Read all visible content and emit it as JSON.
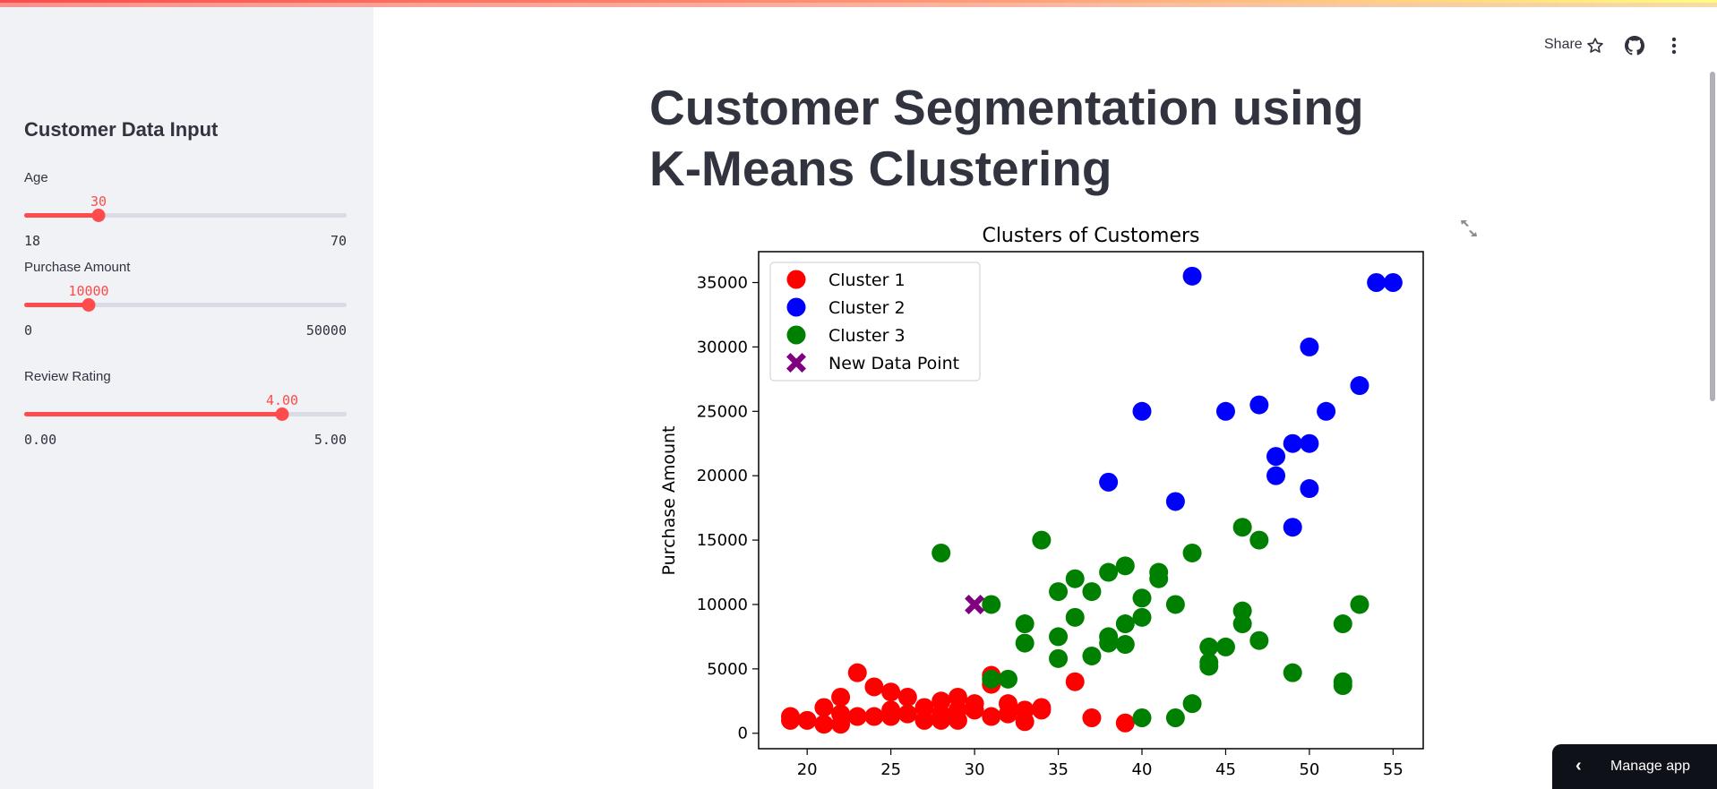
{
  "header": {
    "share_label": "Share",
    "icons": [
      "star-icon",
      "github-icon",
      "more-vertical-icon"
    ]
  },
  "sidebar": {
    "title": "Customer Data Input",
    "sliders": [
      {
        "label": "Age",
        "value": 30,
        "value_text": "30",
        "min": 18,
        "max": 70,
        "min_text": "18",
        "max_text": "70"
      },
      {
        "label": "Purchase Amount",
        "value": 10000,
        "value_text": "10000",
        "min": 0,
        "max": 50000,
        "min_text": "0",
        "max_text": "50000"
      },
      {
        "label": "Review Rating",
        "value": 4.0,
        "value_text": "4.00",
        "min": 0,
        "max": 5,
        "min_text": "0.00",
        "max_text": "5.00"
      }
    ]
  },
  "main": {
    "title": "Customer Segmentation using K-Means Clustering"
  },
  "manage_app": {
    "label": "Manage app"
  },
  "colors": {
    "accent": "#ff4b4b",
    "cluster1": "#ff0000",
    "cluster2": "#0000ff",
    "cluster3": "#008000",
    "new_point": "#800080"
  },
  "chart_data": {
    "type": "scatter",
    "title": "Clusters of Customers",
    "xlabel": "",
    "ylabel": "Purchase Amount",
    "xlim": [
      17.1,
      56.8
    ],
    "ylim": [
      -1200,
      37400
    ],
    "xticks": [
      20,
      25,
      30,
      35,
      40,
      45,
      50,
      55
    ],
    "yticks": [
      0,
      5000,
      10000,
      15000,
      20000,
      25000,
      30000,
      35000
    ],
    "grid": false,
    "legend_position": "top-left",
    "series": [
      {
        "name": "Cluster 1",
        "color": "#ff0000",
        "marker": "circle",
        "points": [
          [
            19,
            1300
          ],
          [
            19,
            1000
          ],
          [
            20,
            1000
          ],
          [
            21,
            2000
          ],
          [
            21,
            700
          ],
          [
            22,
            2800
          ],
          [
            22,
            1500
          ],
          [
            22,
            700
          ],
          [
            23,
            4700
          ],
          [
            23,
            1300
          ],
          [
            24,
            3600
          ],
          [
            24,
            1300
          ],
          [
            25,
            3200
          ],
          [
            25,
            1800
          ],
          [
            25,
            1300
          ],
          [
            26,
            2800
          ],
          [
            26,
            1500
          ],
          [
            27,
            2000
          ],
          [
            27,
            1000
          ],
          [
            28,
            2500
          ],
          [
            28,
            1500
          ],
          [
            28,
            1000
          ],
          [
            29,
            2800
          ],
          [
            29,
            1800
          ],
          [
            29,
            1000
          ],
          [
            30,
            2300
          ],
          [
            30,
            1800
          ],
          [
            31,
            4500
          ],
          [
            31,
            3800
          ],
          [
            31,
            1300
          ],
          [
            32,
            2300
          ],
          [
            32,
            1500
          ],
          [
            33,
            1800
          ],
          [
            33,
            900
          ],
          [
            34,
            2000
          ],
          [
            34,
            1800
          ],
          [
            36,
            4000
          ],
          [
            37,
            1200
          ],
          [
            39,
            800
          ]
        ]
      },
      {
        "name": "Cluster 2",
        "color": "#0000ff",
        "marker": "circle",
        "points": [
          [
            43,
            35500
          ],
          [
            54,
            35000
          ],
          [
            55,
            35000
          ],
          [
            50,
            30000
          ],
          [
            53,
            27000
          ],
          [
            40,
            25000
          ],
          [
            45,
            25000
          ],
          [
            47,
            25500
          ],
          [
            51,
            25000
          ],
          [
            49,
            22500
          ],
          [
            50,
            22500
          ],
          [
            48,
            21500
          ],
          [
            48,
            20000
          ],
          [
            38,
            19500
          ],
          [
            50,
            19000
          ],
          [
            42,
            18000
          ],
          [
            49,
            16000
          ]
        ]
      },
      {
        "name": "Cluster 3",
        "color": "#008000",
        "marker": "circle",
        "points": [
          [
            28,
            14000
          ],
          [
            34,
            15000
          ],
          [
            46,
            16000
          ],
          [
            47,
            15000
          ],
          [
            43,
            14000
          ],
          [
            38,
            12500
          ],
          [
            39,
            13000
          ],
          [
            36,
            12000
          ],
          [
            41,
            12500
          ],
          [
            41,
            12000
          ],
          [
            35,
            11000
          ],
          [
            37,
            11000
          ],
          [
            31,
            10000
          ],
          [
            40,
            10500
          ],
          [
            42,
            10000
          ],
          [
            53,
            10000
          ],
          [
            36,
            9000
          ],
          [
            40,
            9000
          ],
          [
            46,
            9500
          ],
          [
            46,
            8500
          ],
          [
            33,
            8500
          ],
          [
            39,
            8500
          ],
          [
            52,
            8500
          ],
          [
            35,
            7500
          ],
          [
            38,
            7500
          ],
          [
            38,
            7000
          ],
          [
            33,
            7000
          ],
          [
            39,
            6900
          ],
          [
            44,
            6700
          ],
          [
            45,
            6700
          ],
          [
            47,
            7200
          ],
          [
            35,
            5800
          ],
          [
            37,
            6000
          ],
          [
            44,
            5500
          ],
          [
            44,
            5200
          ],
          [
            49,
            4700
          ],
          [
            52,
            4000
          ],
          [
            52,
            3700
          ],
          [
            31,
            4200
          ],
          [
            32,
            4200
          ],
          [
            43,
            2300
          ],
          [
            40,
            1200
          ],
          [
            42,
            1200
          ]
        ]
      },
      {
        "name": "New Data Point",
        "color": "#800080",
        "marker": "x",
        "points": [
          [
            30,
            10000
          ]
        ]
      }
    ]
  }
}
